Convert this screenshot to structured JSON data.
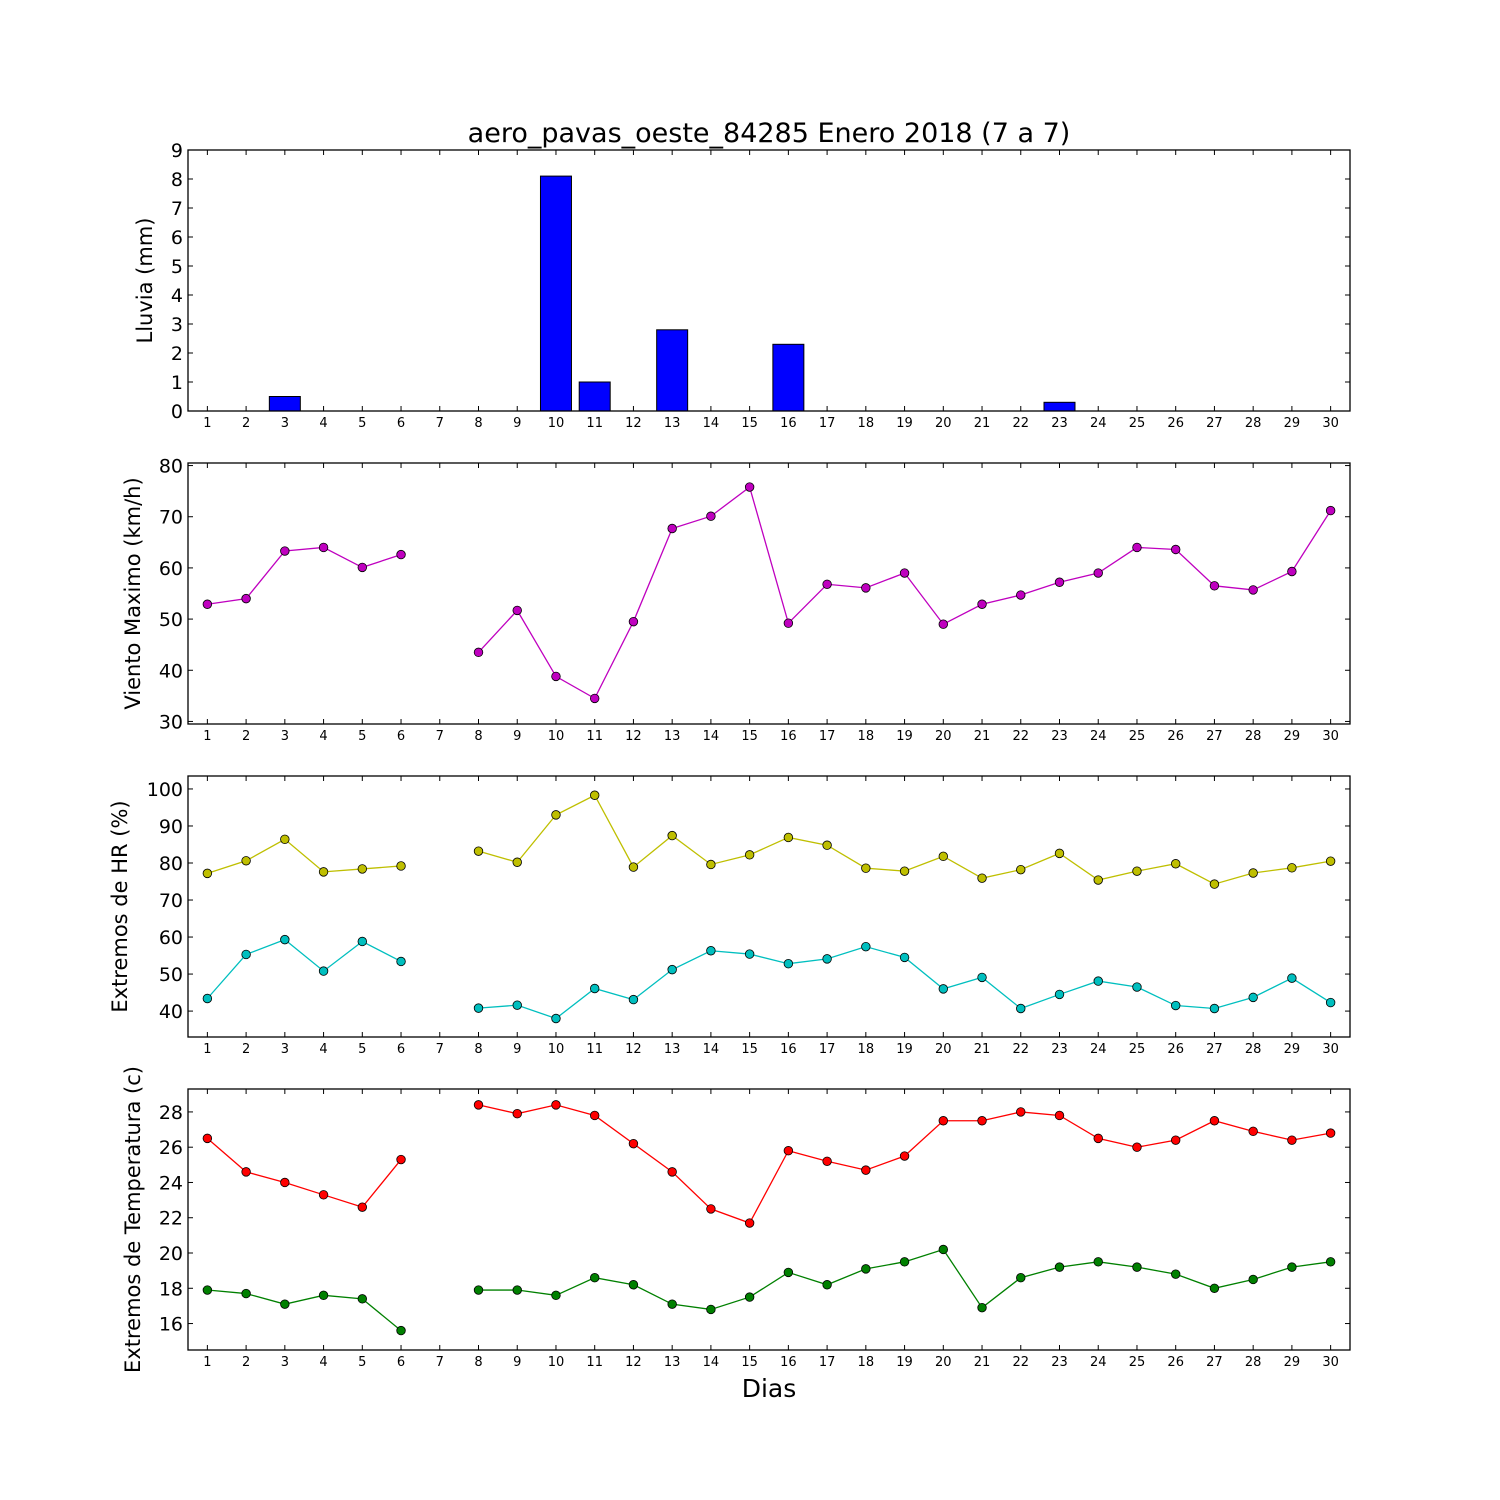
{
  "figure": {
    "title": "aero_pavas_oeste_84285 Enero 2018  (7 a 7)",
    "xlabel": "Dias"
  },
  "chart_data": [
    {
      "type": "bar",
      "ylabel": "Lluvia (mm)",
      "x": [
        1,
        2,
        3,
        4,
        5,
        6,
        7,
        8,
        9,
        10,
        11,
        12,
        13,
        14,
        15,
        16,
        17,
        18,
        19,
        20,
        21,
        22,
        23,
        24,
        25,
        26,
        27,
        28,
        29,
        30
      ],
      "xlim": [
        0.5,
        30.5
      ],
      "ylim": [
        0,
        9
      ],
      "yticks": [
        0,
        1,
        2,
        3,
        4,
        5,
        6,
        7,
        8,
        9
      ],
      "grid": false,
      "series": [
        {
          "color": "#0000ff",
          "values": [
            0,
            0,
            0.5,
            0,
            0,
            0,
            0,
            0,
            0,
            8.1,
            1.0,
            0,
            2.8,
            0,
            0,
            2.3,
            0,
            0,
            0,
            0,
            0,
            0,
            0.3,
            0,
            0,
            0,
            0,
            0,
            0,
            0
          ]
        }
      ]
    },
    {
      "type": "line",
      "ylabel": "Viento Maximo (km/h)",
      "x": [
        1,
        2,
        3,
        4,
        5,
        6,
        7,
        8,
        9,
        10,
        11,
        12,
        13,
        14,
        15,
        16,
        17,
        18,
        19,
        20,
        21,
        22,
        23,
        24,
        25,
        26,
        27,
        28,
        29,
        30
      ],
      "xlim": [
        0.5,
        30.5
      ],
      "ylim": [
        29.5,
        80.5
      ],
      "yticks": [
        30,
        40,
        50,
        60,
        70,
        80
      ],
      "grid": false,
      "series": [
        {
          "color": "#bf00bf",
          "values": [
            52.9,
            54.0,
            63.3,
            64.0,
            60.1,
            62.6,
            null,
            43.5,
            51.7,
            38.8,
            34.5,
            49.5,
            67.7,
            70.1,
            75.8,
            49.2,
            56.8,
            56.1,
            59.0,
            49.0,
            52.9,
            54.7,
            57.2,
            59.0,
            64.0,
            63.6,
            56.5,
            55.7,
            59.3,
            71.2
          ]
        }
      ]
    },
    {
      "type": "line",
      "ylabel": "Extremos de HR (%)",
      "x": [
        1,
        2,
        3,
        4,
        5,
        6,
        7,
        8,
        9,
        10,
        11,
        12,
        13,
        14,
        15,
        16,
        17,
        18,
        19,
        20,
        21,
        22,
        23,
        24,
        25,
        26,
        27,
        28,
        29,
        30
      ],
      "xlim": [
        0.5,
        30.5
      ],
      "ylim": [
        33,
        103.5
      ],
      "yticks": [
        40,
        50,
        60,
        70,
        80,
        90,
        100
      ],
      "grid": false,
      "series": [
        {
          "color": "#bfbf00",
          "values": [
            77.2,
            80.6,
            86.4,
            77.6,
            78.4,
            79.2,
            null,
            83.2,
            80.2,
            93.0,
            98.3,
            78.9,
            87.4,
            79.6,
            82.2,
            86.9,
            84.8,
            78.6,
            77.8,
            81.8,
            75.9,
            78.2,
            82.6,
            75.4,
            77.8,
            79.8,
            74.3,
            77.3,
            78.7,
            80.5
          ]
        },
        {
          "color": "#00bfbf",
          "values": [
            43.4,
            55.3,
            59.3,
            50.8,
            58.8,
            53.4,
            null,
            40.8,
            41.6,
            38.0,
            46.1,
            43.1,
            51.2,
            56.3,
            55.4,
            52.8,
            54.1,
            57.4,
            54.5,
            46.0,
            49.1,
            40.7,
            44.5,
            48.1,
            46.5,
            41.5,
            40.7,
            43.7,
            48.9,
            42.3
          ]
        }
      ]
    },
    {
      "type": "line",
      "ylabel": "Extremos de Temperatura (c)",
      "x": [
        1,
        2,
        3,
        4,
        5,
        6,
        7,
        8,
        9,
        10,
        11,
        12,
        13,
        14,
        15,
        16,
        17,
        18,
        19,
        20,
        21,
        22,
        23,
        24,
        25,
        26,
        27,
        28,
        29,
        30
      ],
      "xlim": [
        0.5,
        30.5
      ],
      "ylim": [
        14.5,
        29.3
      ],
      "yticks": [
        16,
        18,
        20,
        22,
        24,
        26,
        28
      ],
      "grid": false,
      "series": [
        {
          "color": "#ff0000",
          "values": [
            26.5,
            24.6,
            24.0,
            23.3,
            22.6,
            25.3,
            null,
            28.4,
            27.9,
            28.4,
            27.8,
            26.2,
            24.6,
            22.5,
            21.7,
            25.8,
            25.2,
            24.7,
            25.5,
            27.5,
            27.5,
            28.0,
            27.8,
            26.5,
            26.0,
            26.4,
            27.5,
            26.9,
            26.4,
            26.8
          ]
        },
        {
          "color": "#008000",
          "values": [
            17.9,
            17.7,
            17.1,
            17.6,
            17.4,
            15.6,
            null,
            17.9,
            17.9,
            17.6,
            18.6,
            18.2,
            17.1,
            16.8,
            17.5,
            18.9,
            18.2,
            19.1,
            19.5,
            20.2,
            16.9,
            18.6,
            19.2,
            19.5,
            19.2,
            18.8,
            18.0,
            18.5,
            19.2,
            19.5
          ]
        }
      ]
    }
  ]
}
